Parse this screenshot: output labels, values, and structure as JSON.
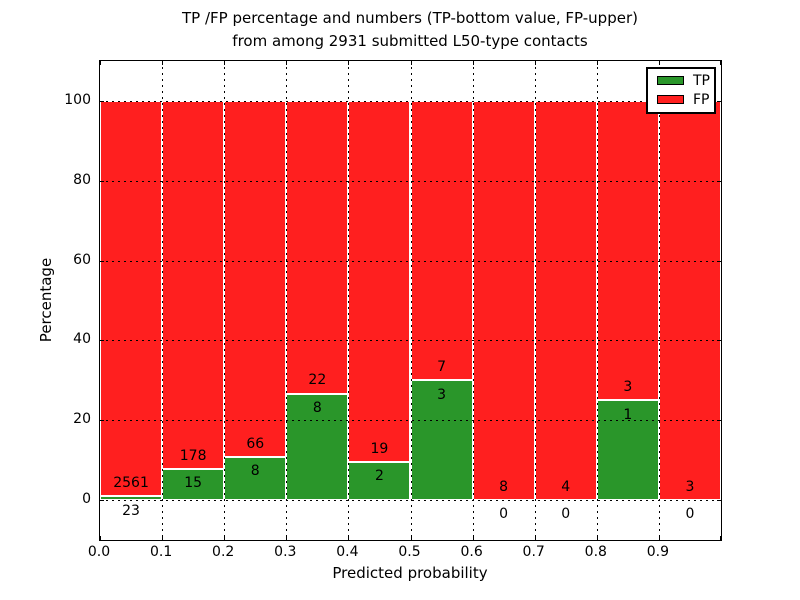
{
  "figure": {
    "title_line1": "TP /FP percentage and numbers (TP-bottom value, FP-upper)",
    "title_line2": "from among 2931 submitted L50-type contacts",
    "xlabel": "Predicted probability",
    "ylabel": "Percentage"
  },
  "legend": {
    "items": [
      {
        "label": "TP",
        "color": "#2a962a"
      },
      {
        "label": "FP",
        "color": "#ff1f1f"
      }
    ]
  },
  "chart_data": {
    "type": "bar",
    "stacked": true,
    "title": "TP /FP percentage and numbers (TP-bottom value, FP-upper) from among 2931 submitted L50-type contacts",
    "xlabel": "Predicted probability",
    "ylabel": "Percentage",
    "xlim": [
      0.0,
      1.0
    ],
    "ylim": [
      -10,
      110
    ],
    "x_tick_labels": [
      "0.0",
      "0.1",
      "0.2",
      "0.3",
      "0.4",
      "0.5",
      "0.6",
      "0.7",
      "0.8",
      "0.9"
    ],
    "y_tick_values": [
      0,
      20,
      40,
      60,
      80,
      100
    ],
    "grid": "dotted",
    "legend_position": "upper right",
    "bin_width": 0.1,
    "total_contacts": 2931,
    "categories": [
      "0.0-0.1",
      "0.1-0.2",
      "0.2-0.3",
      "0.3-0.4",
      "0.4-0.5",
      "0.5-0.6",
      "0.6-0.7",
      "0.7-0.8",
      "0.8-0.9",
      "0.9-1.0"
    ],
    "series": [
      {
        "name": "TP",
        "color": "#2a962a",
        "counts": [
          23,
          15,
          8,
          8,
          2,
          3,
          0,
          0,
          1,
          0
        ]
      },
      {
        "name": "FP",
        "color": "#ff1f1f",
        "counts": [
          2561,
          178,
          66,
          22,
          19,
          7,
          8,
          4,
          3,
          3
        ]
      }
    ],
    "tp_percent": [
      0.89,
      7.77,
      10.81,
      26.67,
      9.52,
      30.0,
      0.0,
      0.0,
      25.0,
      0.0
    ]
  }
}
